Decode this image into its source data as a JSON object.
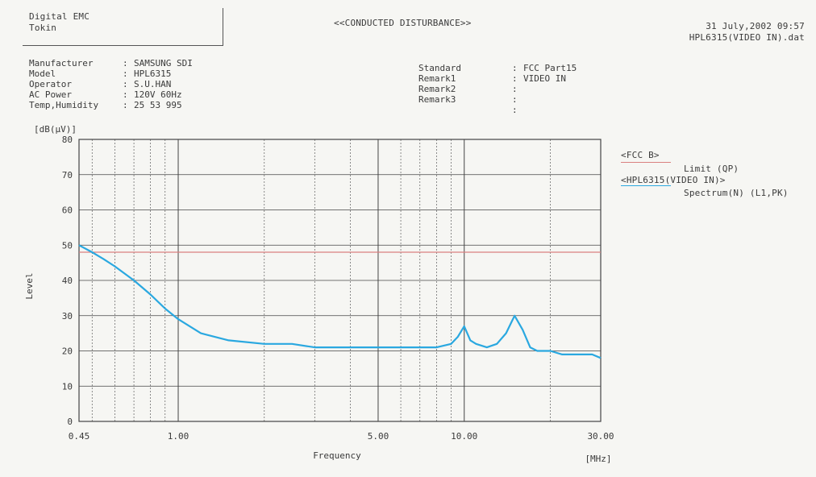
{
  "header": {
    "company_line1": "Digital EMC",
    "company_line2": "Tokin",
    "report_title": "<<CONDUCTED DISTURBANCE>>",
    "datetime": "31 July,2002 09:57",
    "filename": "HPL6315(VIDEO IN).dat"
  },
  "info_left": [
    {
      "key": "Manufacturer",
      "value": "SAMSUNG SDI"
    },
    {
      "key": "Model",
      "value": "HPL6315"
    },
    {
      "key": "Operator",
      "value": "S.U.HAN"
    },
    {
      "key": "AC Power",
      "value": "120V   60Hz"
    },
    {
      "key": "Temp,Humidity",
      "value": "25   53   995"
    }
  ],
  "info_right": [
    {
      "key": "Standard",
      "value": "FCC Part15"
    },
    {
      "key": "Remark1",
      "value": "VIDEO IN"
    },
    {
      "key": "Remark2",
      "value": ""
    },
    {
      "key": "Remark3",
      "value": ""
    },
    {
      "key": "",
      "value": ""
    }
  ],
  "legend": {
    "limit_group": "<FCC B>",
    "limit_label": "Limit (QP)",
    "spectrum_group": "<HPL6315(VIDEO IN)>",
    "spectrum_label": "Spectrum(N) (L1,PK)"
  },
  "colors": {
    "spectrum": "#2aa8e0",
    "limit": "#d98080",
    "grid": "#444444"
  },
  "chart_data": {
    "type": "line",
    "xlabel": "Frequency",
    "xunit": "[MHz]",
    "ylabel": "Level",
    "yunit": "[dB(μV)]",
    "x_scale": "log",
    "xlim": [
      0.45,
      30
    ],
    "ylim": [
      0,
      80
    ],
    "x_tick_labels": [
      {
        "value": 0.45,
        "label": "0.45"
      },
      {
        "value": 1,
        "label": "1.00"
      },
      {
        "value": 5,
        "label": "5.00"
      },
      {
        "value": 10,
        "label": "10.00"
      },
      {
        "value": 30,
        "label": "30.00"
      }
    ],
    "y_ticks": [
      0,
      10,
      20,
      30,
      40,
      50,
      60,
      70,
      80
    ],
    "x_minor_grid": [
      0.5,
      0.6,
      0.7,
      0.8,
      0.9,
      2,
      3,
      4,
      6,
      7,
      8,
      9,
      20
    ],
    "grid": true,
    "legend_position": "right",
    "series": [
      {
        "name": "Limit (QP)",
        "x": [
          0.45,
          30
        ],
        "y": [
          48,
          48
        ]
      },
      {
        "name": "Spectrum(N) (L1,PK)",
        "x": [
          0.45,
          0.5,
          0.55,
          0.6,
          0.7,
          0.8,
          0.9,
          1.0,
          1.2,
          1.5,
          2.0,
          2.5,
          3,
          4,
          5,
          6,
          7,
          8,
          9,
          9.5,
          10,
          10.5,
          11,
          12,
          13,
          14,
          15,
          16,
          17,
          18,
          20,
          22,
          25,
          28,
          30
        ],
        "y": [
          50,
          48,
          46,
          44,
          40,
          36,
          32,
          29,
          25,
          23,
          22,
          22,
          21,
          21,
          21,
          21,
          21,
          21,
          22,
          24,
          27,
          23,
          22,
          21,
          22,
          25,
          30,
          26,
          21,
          20,
          20,
          19,
          19,
          19,
          18
        ]
      }
    ]
  }
}
